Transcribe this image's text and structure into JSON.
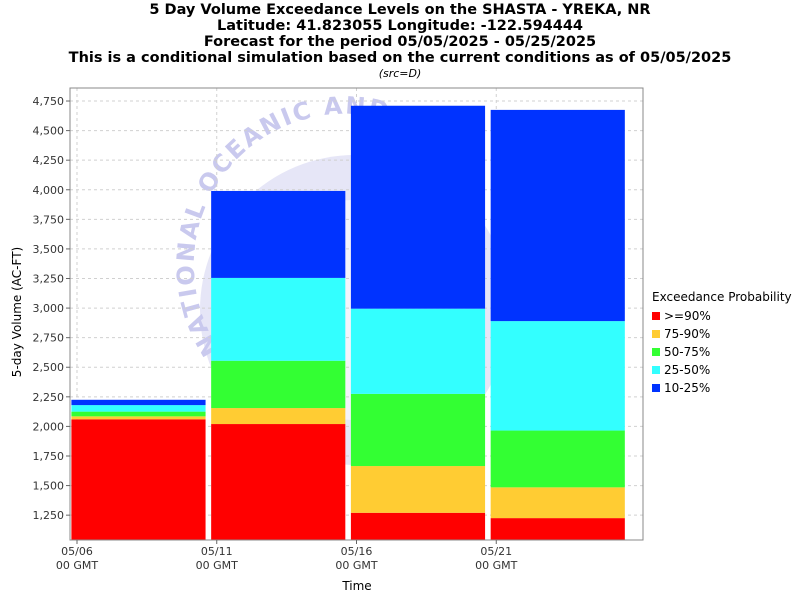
{
  "chart_data": {
    "type": "bar",
    "stacked": true,
    "title": [
      "5 Day Volume Exceedance Levels on the SHASTA - YREKA, NR",
      "Latitude: 41.823055 Longitude: -122.594444",
      "Forecast for the period 05/05/2025 - 05/25/2025",
      "This is a conditional simulation based on the current conditions as of 05/05/2025"
    ],
    "subtitle": "(src=D)",
    "xlabel": "Time",
    "ylabel": "5-day Volume (AC-FT)",
    "x_ticks": [
      {
        "label": "05/06",
        "sub": "00 GMT",
        "day": 6
      },
      {
        "label": "05/11",
        "sub": "00 GMT",
        "day": 11
      },
      {
        "label": "05/16",
        "sub": "00 GMT",
        "day": 16
      },
      {
        "label": "05/21",
        "sub": "00 GMT",
        "day": 21
      }
    ],
    "xlim_days": [
      5.75,
      26.25
    ],
    "ylim": [
      1040,
      4860
    ],
    "y_ticks": [
      1250,
      1500,
      1750,
      2000,
      2250,
      2500,
      2750,
      3000,
      3250,
      3500,
      3750,
      4000,
      4250,
      4500,
      4750
    ],
    "grid": true,
    "legend_title": "Exceedance Probability",
    "legend_position": "right",
    "series": [
      {
        "name": ">=90%",
        "color": "#ff0000"
      },
      {
        "name": "75-90%",
        "color": "#ffcc33"
      },
      {
        "name": "50-75%",
        "color": "#33ff33"
      },
      {
        "name": "25-50%",
        "color": "#33ffff"
      },
      {
        "name": "10-25%",
        "color": "#0033ff"
      }
    ],
    "bars": [
      {
        "start_day": 5.8,
        "end_day": 10.6,
        "levels": [
          2060,
          2085,
          2125,
          2180,
          2225
        ]
      },
      {
        "start_day": 10.8,
        "end_day": 15.6,
        "levels": [
          2020,
          2155,
          2555,
          3255,
          3990
        ]
      },
      {
        "start_day": 15.8,
        "end_day": 20.6,
        "levels": [
          1270,
          1665,
          2275,
          2995,
          4710
        ]
      },
      {
        "start_day": 20.8,
        "end_day": 25.6,
        "levels": [
          1225,
          1485,
          1965,
          2890,
          4675
        ]
      }
    ],
    "watermark": "NATIONAL OCEANIC AND ATMOSPHERIC ADMINISTRATION"
  }
}
